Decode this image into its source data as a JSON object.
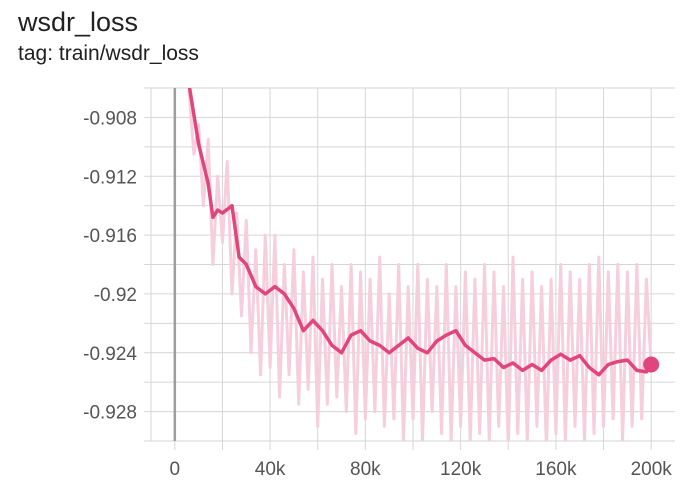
{
  "card": {
    "title": "wsdr_loss",
    "subtitle": "tag: train/wsdr_loss"
  },
  "colors": {
    "smoothed": "#e0457b",
    "raw": "#f6cfdc",
    "grid": "#d6d6d6",
    "axis_zero": "#9e9e9e"
  },
  "chart_data": {
    "type": "line",
    "title": "wsdr_loss",
    "xlabel": "",
    "ylabel": "",
    "xlim": [
      -10000,
      210000
    ],
    "ylim": [
      -0.93,
      -0.906
    ],
    "x_ticks": [
      0,
      20000,
      40000,
      60000,
      80000,
      100000,
      120000,
      140000,
      160000,
      180000,
      200000
    ],
    "x_tick_labels": [
      "0",
      "",
      "40k",
      "",
      "80k",
      "",
      "120k",
      "",
      "160k",
      "",
      "200k"
    ],
    "y_ticks": [
      -0.93,
      -0.928,
      -0.926,
      -0.924,
      -0.922,
      -0.92,
      -0.918,
      -0.916,
      -0.914,
      -0.912,
      -0.91,
      -0.908,
      -0.906
    ],
    "y_tick_labels": [
      "",
      "-0.928",
      "",
      "-0.924",
      "",
      "-0.92",
      "",
      "-0.916",
      "",
      "-0.912",
      "",
      "-0.908",
      ""
    ],
    "grid": true,
    "series": [
      {
        "role": "smoothed",
        "x": [
          6000,
          10000,
          14000,
          16000,
          18000,
          20000,
          24000,
          27000,
          30000,
          34000,
          38000,
          42000,
          46000,
          50000,
          54000,
          58000,
          62000,
          66000,
          70000,
          74000,
          78000,
          82000,
          86000,
          90000,
          94000,
          98000,
          102000,
          106000,
          110000,
          114000,
          118000,
          122000,
          126000,
          130000,
          134000,
          138000,
          142000,
          146000,
          150000,
          154000,
          158000,
          162000,
          166000,
          170000,
          174000,
          178000,
          182000,
          186000,
          190000,
          194000,
          198000,
          200000
        ],
        "y": [
          -0.9058,
          -0.9098,
          -0.9125,
          -0.9148,
          -0.9143,
          -0.9145,
          -0.914,
          -0.9175,
          -0.918,
          -0.9195,
          -0.92,
          -0.9195,
          -0.92,
          -0.921,
          -0.9225,
          -0.9218,
          -0.9225,
          -0.9235,
          -0.924,
          -0.9228,
          -0.9225,
          -0.9232,
          -0.9235,
          -0.924,
          -0.9235,
          -0.923,
          -0.9237,
          -0.924,
          -0.9232,
          -0.9228,
          -0.9225,
          -0.9235,
          -0.924,
          -0.9245,
          -0.9244,
          -0.925,
          -0.9247,
          -0.9252,
          -0.9248,
          -0.9252,
          -0.9245,
          -0.9241,
          -0.9245,
          -0.9242,
          -0.925,
          -0.9255,
          -0.9248,
          -0.9246,
          -0.9245,
          -0.9252,
          -0.9253,
          -0.9248
        ]
      },
      {
        "role": "raw",
        "x": [
          6000,
          8000,
          10000,
          12000,
          14000,
          16000,
          18000,
          20000,
          22000,
          24000,
          26000,
          28000,
          30000,
          32000,
          34000,
          36000,
          38000,
          40000,
          42000,
          44000,
          46000,
          48000,
          50000,
          52000,
          54000,
          56000,
          58000,
          60000,
          62000,
          64000,
          66000,
          68000,
          70000,
          72000,
          74000,
          76000,
          78000,
          80000,
          82000,
          84000,
          86000,
          88000,
          90000,
          92000,
          94000,
          96000,
          98000,
          100000,
          102000,
          104000,
          106000,
          108000,
          110000,
          112000,
          114000,
          116000,
          118000,
          120000,
          122000,
          124000,
          126000,
          128000,
          130000,
          132000,
          134000,
          136000,
          138000,
          140000,
          142000,
          144000,
          146000,
          148000,
          150000,
          152000,
          154000,
          156000,
          158000,
          160000,
          162000,
          164000,
          166000,
          168000,
          170000,
          172000,
          174000,
          176000,
          178000,
          180000,
          182000,
          184000,
          186000,
          188000,
          190000,
          192000,
          194000,
          196000,
          198000,
          200000
        ],
        "y": [
          -0.9062,
          -0.9105,
          -0.9085,
          -0.914,
          -0.9095,
          -0.918,
          -0.912,
          -0.9165,
          -0.911,
          -0.92,
          -0.9145,
          -0.9215,
          -0.915,
          -0.924,
          -0.917,
          -0.9255,
          -0.916,
          -0.925,
          -0.916,
          -0.927,
          -0.918,
          -0.9255,
          -0.917,
          -0.9275,
          -0.9185,
          -0.9265,
          -0.9175,
          -0.929,
          -0.919,
          -0.9275,
          -0.918,
          -0.927,
          -0.9195,
          -0.928,
          -0.918,
          -0.9295,
          -0.9185,
          -0.9285,
          -0.919,
          -0.928,
          -0.9175,
          -0.929,
          -0.92,
          -0.9285,
          -0.918,
          -0.93,
          -0.9195,
          -0.9285,
          -0.918,
          -0.93,
          -0.919,
          -0.928,
          -0.9195,
          -0.9295,
          -0.918,
          -0.93,
          -0.9195,
          -0.929,
          -0.9185,
          -0.93,
          -0.919,
          -0.9295,
          -0.918,
          -0.93,
          -0.9185,
          -0.929,
          -0.9195,
          -0.9305,
          -0.9175,
          -0.9295,
          -0.919,
          -0.93,
          -0.9185,
          -0.929,
          -0.9195,
          -0.9305,
          -0.919,
          -0.9295,
          -0.918,
          -0.93,
          -0.9185,
          -0.929,
          -0.919,
          -0.93,
          -0.918,
          -0.9295,
          -0.9175,
          -0.929,
          -0.9185,
          -0.9285,
          -0.918,
          -0.93,
          -0.9185,
          -0.929,
          -0.918,
          -0.9285,
          -0.919,
          -0.925
        ]
      }
    ],
    "last_point": {
      "x": 200000,
      "y": -0.9248
    }
  }
}
